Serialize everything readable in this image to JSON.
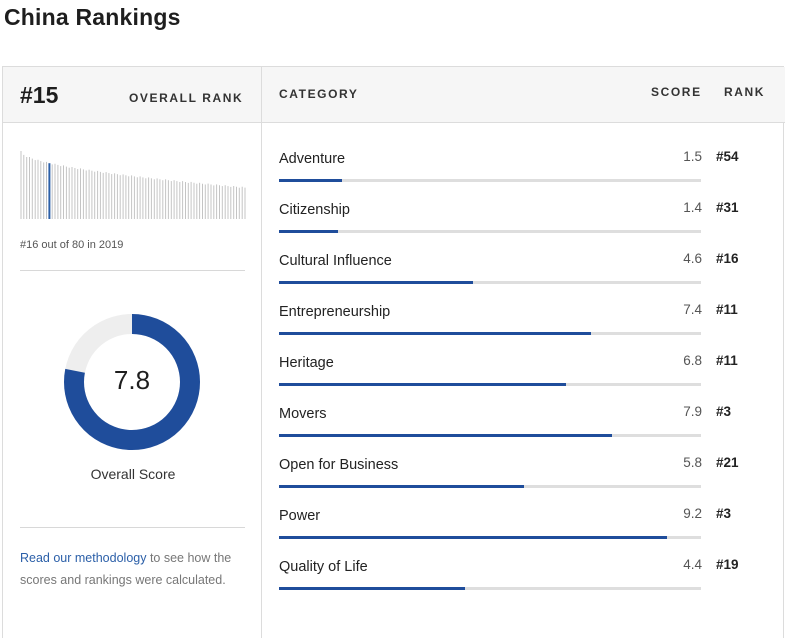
{
  "page": {
    "title": "China Rankings"
  },
  "summary": {
    "overall_rank": "#15",
    "overall_rank_label": "OVERALL RANK",
    "rank_note": "#16 out of 80 in 2019",
    "rank_history": {
      "highlight_index": 10,
      "highlight_color": "#2b5fa8",
      "bar_color": "#c4c4c4"
    },
    "overall_score": "7.8",
    "overall_score_fraction": 0.78,
    "overall_score_label": "Overall Score",
    "methodology_link": "Read our methodology",
    "methodology_rest": " to see how the scores and rankings were calculated."
  },
  "table": {
    "col_category": "CATEGORY",
    "col_score": "SCORE",
    "col_rank": "RANK",
    "rows": [
      {
        "category": "Adventure",
        "score": "1.5",
        "rank": "#54",
        "fraction": 0.15
      },
      {
        "category": "Citizenship",
        "score": "1.4",
        "rank": "#31",
        "fraction": 0.14
      },
      {
        "category": "Cultural Influence",
        "score": "4.6",
        "rank": "#16",
        "fraction": 0.46
      },
      {
        "category": "Entrepreneurship",
        "score": "7.4",
        "rank": "#11",
        "fraction": 0.74
      },
      {
        "category": "Heritage",
        "score": "6.8",
        "rank": "#11",
        "fraction": 0.68
      },
      {
        "category": "Movers",
        "score": "7.9",
        "rank": "#3",
        "fraction": 0.79
      },
      {
        "category": "Open for Business",
        "score": "5.8",
        "rank": "#21",
        "fraction": 0.58
      },
      {
        "category": "Power",
        "score": "9.2",
        "rank": "#3",
        "fraction": 0.92
      },
      {
        "category": "Quality of Life",
        "score": "4.4",
        "rank": "#19",
        "fraction": 0.44
      }
    ]
  },
  "colors": {
    "accent": "#1f4d9b",
    "track": "#dedede",
    "donut_remainder": "#eeeeee",
    "header_bg": "#f6f6f6"
  }
}
